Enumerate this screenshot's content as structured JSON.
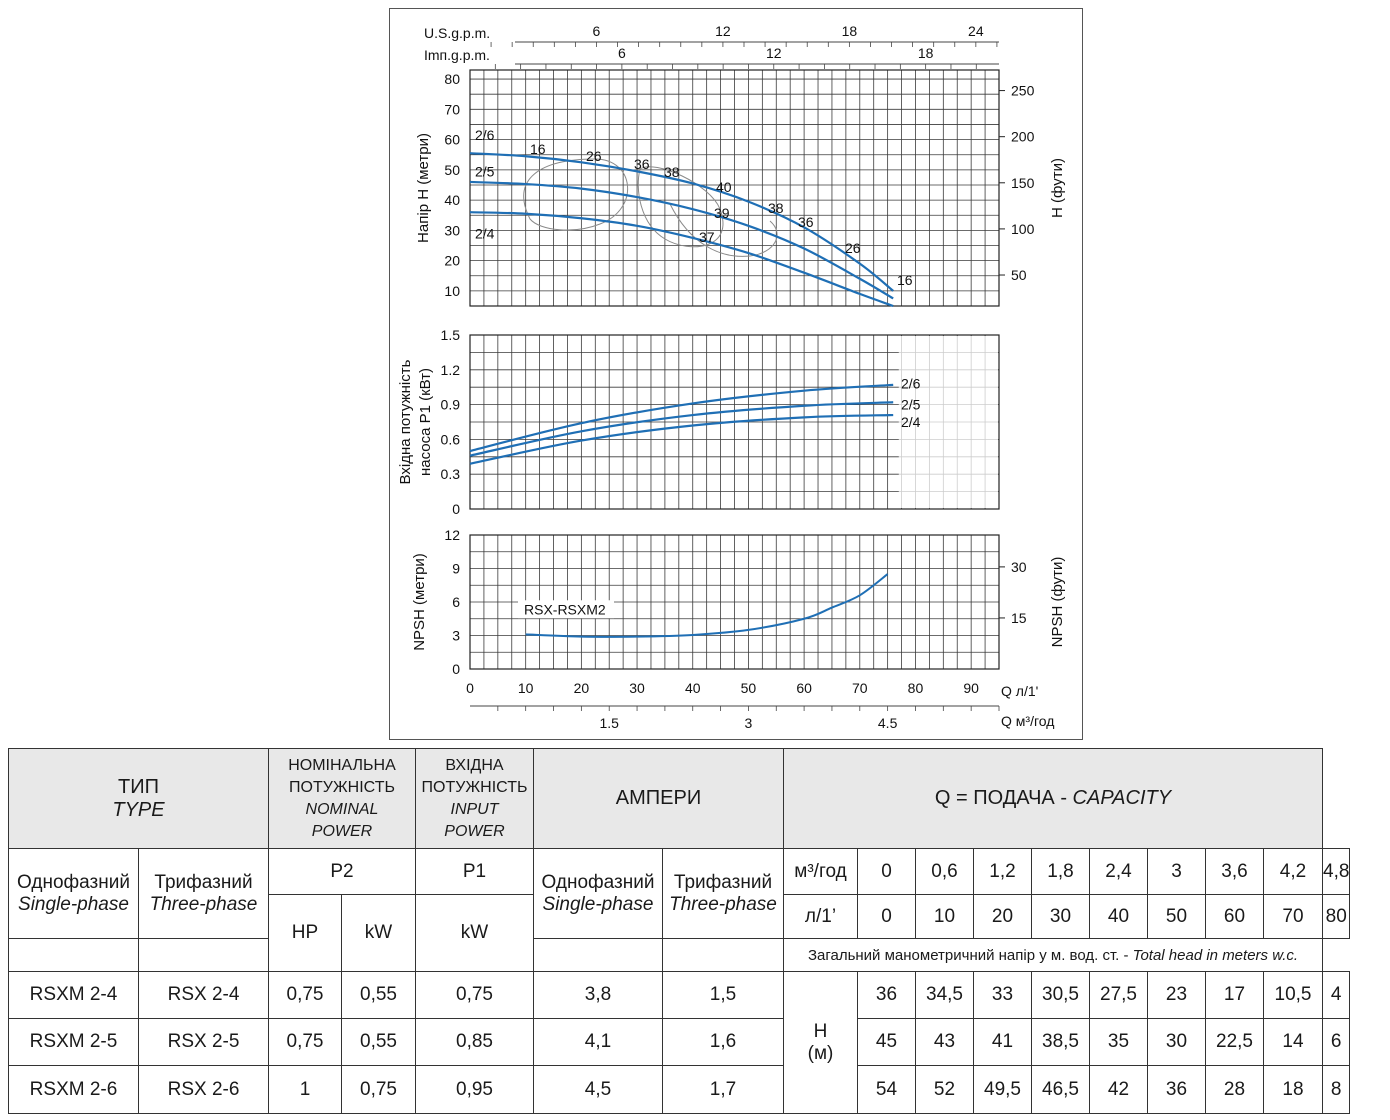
{
  "chart_data": [
    {
      "type": "line",
      "panel": "head",
      "ylabel": "Напір H (метри)",
      "y2label": "H (фути)",
      "xlim": [
        0,
        95
      ],
      "ylim": [
        5,
        83
      ],
      "yticks": [
        10,
        20,
        30,
        40,
        50,
        60,
        70,
        80
      ],
      "y2ticks": [
        50,
        100,
        150,
        200,
        250
      ],
      "top_axes": [
        {
          "label": "U.S.g.p.m.",
          "ticks": [
            6,
            12,
            18,
            24
          ],
          "lpm_per_unit": 3.785
        },
        {
          "label": "Imп.g.p.m.",
          "ticks": [
            6,
            12,
            18
          ],
          "lpm_per_unit": 4.546
        }
      ],
      "series": [
        {
          "name": "2/6",
          "x": [
            0,
            10,
            20,
            30,
            40,
            50,
            60,
            70,
            76
          ],
          "y": [
            55.5,
            54.5,
            52.5,
            49.5,
            45.5,
            39.5,
            31,
            19,
            10
          ]
        },
        {
          "name": "2/5",
          "x": [
            0,
            10,
            20,
            30,
            40,
            50,
            60,
            70,
            76
          ],
          "y": [
            46,
            45.3,
            43.8,
            41,
            37,
            31.5,
            24,
            14,
            7.5
          ]
        },
        {
          "name": "2/4",
          "x": [
            0,
            10,
            20,
            30,
            40,
            50,
            60,
            70,
            76
          ],
          "y": [
            36,
            35.5,
            34,
            31.5,
            27.5,
            22.5,
            16,
            9,
            5
          ]
        }
      ],
      "annotations": [
        "16",
        "26",
        "36",
        "38",
        "40",
        "39",
        "38",
        "36",
        "26",
        "16",
        "37"
      ]
    },
    {
      "type": "line",
      "panel": "power",
      "ylabel": "Вхідна потужність насоса P1 (кВт)",
      "xlim": [
        0,
        95
      ],
      "ylim": [
        0,
        1.5
      ],
      "yticks": [
        "0",
        "0.3",
        "0.6",
        "0.9",
        "1.2",
        "1.5"
      ],
      "series": [
        {
          "name": "2/6",
          "x": [
            0,
            20,
            40,
            60,
            76
          ],
          "y": [
            0.5,
            0.74,
            0.91,
            1.02,
            1.07
          ]
        },
        {
          "name": "2/5",
          "x": [
            0,
            20,
            40,
            60,
            76
          ],
          "y": [
            0.46,
            0.67,
            0.81,
            0.89,
            0.92
          ]
        },
        {
          "name": "2/4",
          "x": [
            0,
            20,
            40,
            60,
            76
          ],
          "y": [
            0.39,
            0.59,
            0.72,
            0.79,
            0.81
          ]
        }
      ]
    },
    {
      "type": "line",
      "panel": "npsh",
      "ylabel": "NPSH (метри)",
      "y2label": "NPSH (фути)",
      "xlim": [
        0,
        95
      ],
      "ylim": [
        0,
        12
      ],
      "yticks": [
        0,
        3,
        6,
        9,
        12
      ],
      "y2ticks": [
        15,
        30
      ],
      "xticks": [
        0,
        10,
        20,
        30,
        40,
        50,
        60,
        70,
        80,
        90
      ],
      "xlabel": "Q л/1'",
      "x2label": "Q м³/год",
      "x2ticks": [
        "1.5",
        "3",
        "4.5"
      ],
      "series": [
        {
          "name": "RSX-RSXM2",
          "x": [
            10,
            20,
            30,
            40,
            50,
            60,
            65,
            70,
            75
          ],
          "y": [
            3.1,
            2.9,
            2.9,
            3.05,
            3.5,
            4.5,
            5.5,
            6.6,
            8.5
          ]
        }
      ]
    }
  ],
  "table": {
    "type_title": "ТИП",
    "type_title_en": "TYPE",
    "nominal_title": [
      "НОМІНАЛЬНА",
      "ПОТУЖНІСТЬ"
    ],
    "nominal_title_en": [
      "NOMINAL",
      "POWER"
    ],
    "input_title": [
      "ВХІДНА",
      "ПОТУЖНІСТЬ"
    ],
    "input_title_en": [
      "INPUT",
      "POWER"
    ],
    "amps_title": "АМПЕРИ",
    "capacity_title": "Q = ПОДАЧА - ",
    "capacity_title_en": "CAPACITY",
    "single_phase": "Однофазний",
    "single_phase_en": "Single-phase",
    "three_phase": "Трифазний",
    "three_phase_en": "Three-phase",
    "p2": "P2",
    "p1": "P1",
    "hp": "HP",
    "kw": "kW",
    "unit_m3": "м³/год",
    "unit_l": "л/1’",
    "m3_values": [
      "0",
      "0,6",
      "1,2",
      "1,8",
      "2,4",
      "3",
      "3,6",
      "4,2",
      "4,8"
    ],
    "l_values": [
      "0",
      "10",
      "20",
      "30",
      "40",
      "50",
      "60",
      "70",
      "80"
    ],
    "head_note": "Загальний манометричний напір у м. вод. ст. - ",
    "head_note_en": "Total head in meters w.c.",
    "h_label": "H",
    "h_unit": "(м)",
    "rows": [
      {
        "single": "RSXM 2-4",
        "three": "RSX 2-4",
        "hp": "0,75",
        "kw": "0,55",
        "p1": "0,75",
        "amp1": "3,8",
        "amp3": "1,5",
        "heads": [
          "36",
          "34,5",
          "33",
          "30,5",
          "27,5",
          "23",
          "17",
          "10,5",
          "4"
        ]
      },
      {
        "single": "RSXM 2-5",
        "three": "RSX 2-5",
        "hp": "0,75",
        "kw": "0,55",
        "p1": "0,85",
        "amp1": "4,1",
        "amp3": "1,6",
        "heads": [
          "45",
          "43",
          "41",
          "38,5",
          "35",
          "30",
          "22,5",
          "14",
          "6"
        ]
      },
      {
        "single": "RSXM 2-6",
        "three": "RSX 2-6",
        "hp": "1",
        "kw": "0,75",
        "p1": "0,95",
        "amp1": "4,5",
        "amp3": "1,7",
        "heads": [
          "54",
          "52",
          "49,5",
          "46,5",
          "42",
          "36",
          "28",
          "18",
          "8"
        ]
      }
    ]
  },
  "colors": {
    "curve": "#1f6fb5",
    "grid": "#3a3a3a",
    "header_bg": "#e8e8e8"
  }
}
